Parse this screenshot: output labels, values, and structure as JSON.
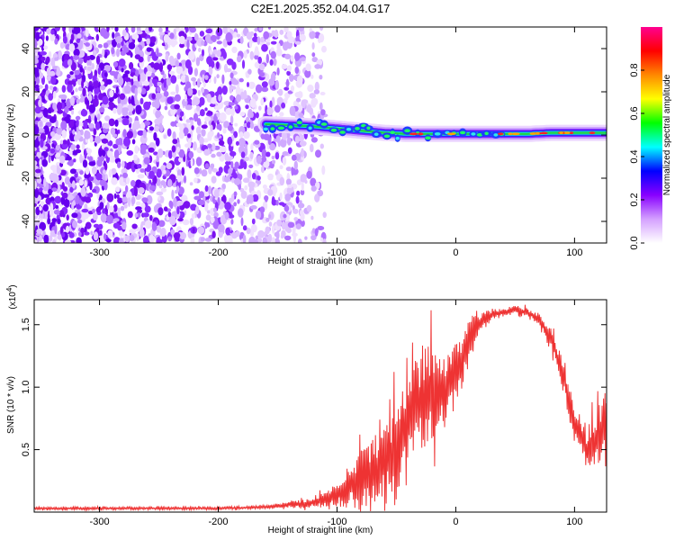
{
  "title": "C2E1.2025.352.04.04.G17",
  "chart_data": [
    {
      "type": "heatmap",
      "xlabel": "Height of straight line (km)",
      "ylabel": "Frequency (Hz)",
      "xlim": [
        -355,
        127
      ],
      "ylim": [
        -50,
        50
      ],
      "xticks": [
        -300,
        -200,
        -100,
        0,
        100
      ],
      "xtick_labels": [
        "-300",
        "-200",
        "-100",
        "0",
        "100"
      ],
      "yticks": [
        -40,
        -20,
        0,
        20,
        40
      ],
      "ytick_labels": [
        "-40",
        "-20",
        "0",
        "20",
        "40"
      ],
      "colorbar": {
        "label": "Normalized spectral amplitude",
        "range": [
          0,
          1
        ],
        "ticks": [
          0.0,
          0.2,
          0.4,
          0.6,
          0.8
        ],
        "tick_labels": [
          "0.0",
          "0.2",
          "0.4",
          "0.6",
          "0.8"
        ],
        "colors": [
          "#ffffff",
          "#d4a0ff",
          "#8800ff",
          "#0000ff",
          "#00ffff",
          "#00ff00",
          "#ffff00",
          "#ff8800",
          "#ff0000",
          "#ff0090"
        ]
      },
      "noise_region": {
        "x_from": -355,
        "x_to": -110,
        "freq_from": -50,
        "freq_to": 50
      },
      "signal_trace": {
        "x": [
          -160,
          -140,
          -120,
          -100,
          -80,
          -60,
          -40,
          -20,
          0,
          20,
          40,
          60,
          80,
          100,
          127
        ],
        "freq": [
          5,
          4.5,
          4,
          3,
          2,
          1,
          0.5,
          0.5,
          0.5,
          0.5,
          0.5,
          0.5,
          1,
          1,
          1
        ]
      }
    },
    {
      "type": "line",
      "xlabel": "Height of straight line (km)",
      "ylabel": "SNR (10 * v/v)",
      "y_multiplier_label": "(x10",
      "y_multiplier_exp": "4",
      "y_multiplier_close": ")",
      "xlim": [
        -355,
        127
      ],
      "ylim": [
        0,
        1.7
      ],
      "xticks": [
        -300,
        -200,
        -100,
        0,
        100
      ],
      "xtick_labels": [
        "-300",
        "-200",
        "-100",
        "0",
        "100"
      ],
      "yticks": [
        0.5,
        1.0,
        1.5
      ],
      "ytick_labels": [
        "0.5",
        "1.0",
        "1.5"
      ],
      "series": [
        {
          "name": "SNR",
          "color": "#ee3333",
          "x": [
            -355,
            -300,
            -250,
            -200,
            -160,
            -140,
            -125,
            -110,
            -100,
            -90,
            -80,
            -70,
            -60,
            -50,
            -40,
            -30,
            -20,
            -10,
            0,
            10,
            20,
            30,
            40,
            50,
            60,
            70,
            80,
            90,
            100,
            110,
            120,
            127
          ],
          "y": [
            0.03,
            0.03,
            0.03,
            0.03,
            0.04,
            0.06,
            0.07,
            0.1,
            0.14,
            0.2,
            0.25,
            0.3,
            0.4,
            0.5,
            0.7,
            0.9,
            0.95,
            0.95,
            1.1,
            1.35,
            1.5,
            1.58,
            1.6,
            1.62,
            1.6,
            1.55,
            1.4,
            1.1,
            0.7,
            0.5,
            0.6,
            0.75
          ],
          "band": [
            0.01,
            0.01,
            0.01,
            0.01,
            0.01,
            0.02,
            0.03,
            0.05,
            0.08,
            0.15,
            0.2,
            0.25,
            0.3,
            0.35,
            0.3,
            0.35,
            0.35,
            0.25,
            0.25,
            0.15,
            0.08,
            0.04,
            0.03,
            0.03,
            0.03,
            0.04,
            0.06,
            0.12,
            0.12,
            0.12,
            0.25,
            0.25
          ]
        }
      ]
    }
  ]
}
